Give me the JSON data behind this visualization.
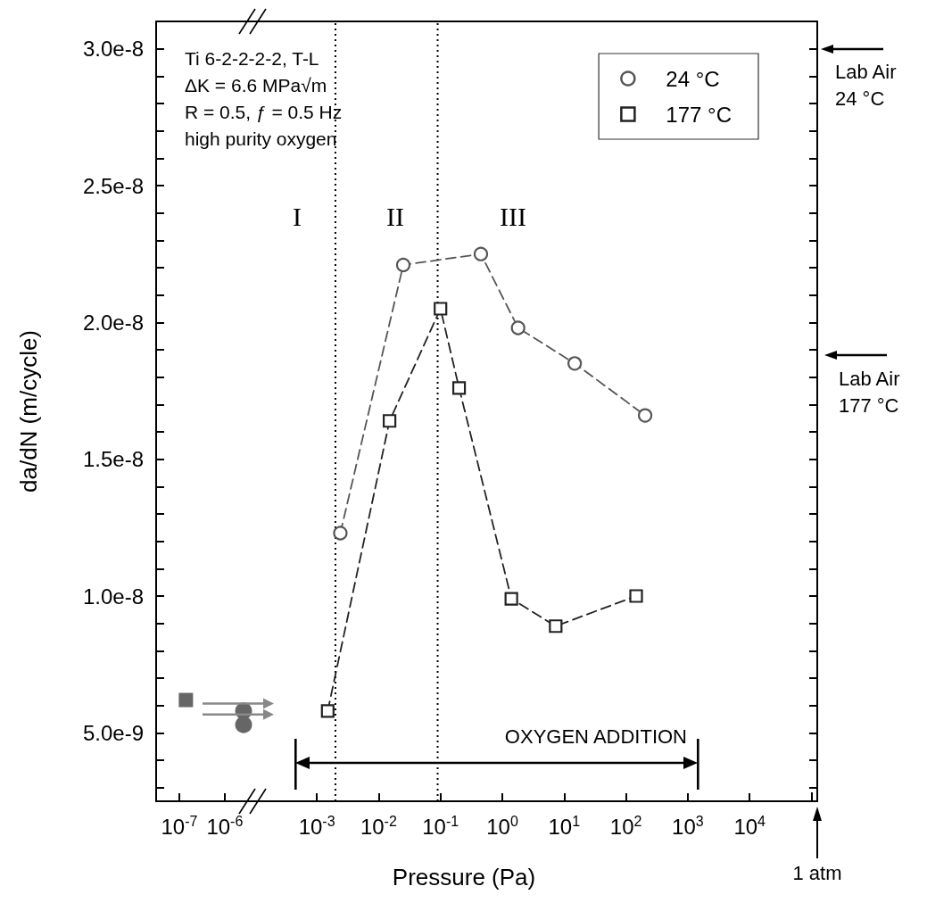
{
  "chart_data": [
    {
      "type": "scatter",
      "log": "x",
      "ylabel": "da/dN (m/cycle)",
      "xlim": [
        3.1e-08,
        5.6e-06
      ],
      "xticks": [
        {
          "value": 1e-07,
          "label": "10$^{-7}$"
        },
        {
          "value": 1e-06,
          "label": "10$^{-6}$"
        }
      ],
      "ylim": [
        2.5e-09,
        3.1e-08
      ],
      "yticks": [
        {
          "value": 3e-09,
          "label": null
        },
        {
          "value": 4e-09,
          "label": null
        },
        {
          "value": 5e-09,
          "label": "5.0e-9"
        },
        {
          "value": 6e-09,
          "label": null
        },
        {
          "value": 7e-09,
          "label": null
        },
        {
          "value": 8e-09,
          "label": null
        },
        {
          "value": 9e-09,
          "label": null
        },
        {
          "value": 1e-08,
          "label": "1.0e-8"
        },
        {
          "value": 1.1e-08,
          "label": null
        },
        {
          "value": 1.2e-08,
          "label": null
        },
        {
          "value": 1.3e-08,
          "label": null
        },
        {
          "value": 1.4e-08,
          "label": null
        },
        {
          "value": 1.5e-08,
          "label": "1.5e-8"
        },
        {
          "value": 1.6e-08,
          "label": null
        },
        {
          "value": 1.7e-08,
          "label": null
        },
        {
          "value": 1.8e-08,
          "label": null
        },
        {
          "value": 1.9e-08,
          "label": null
        },
        {
          "value": 2e-08,
          "label": "2.0e-8"
        },
        {
          "value": 2.1e-08,
          "label": null
        },
        {
          "value": 2.2e-08,
          "label": null
        },
        {
          "value": 2.3e-08,
          "label": null
        },
        {
          "value": 2.4e-08,
          "label": null
        },
        {
          "value": 2.5e-08,
          "label": "2.5e-8"
        },
        {
          "value": 2.6e-08,
          "label": null
        },
        {
          "value": 2.7e-08,
          "label": null
        },
        {
          "value": 2.8e-08,
          "label": null
        },
        {
          "value": 2.9e-08,
          "label": null
        },
        {
          "value": 3e-08,
          "label": "3.0e-8"
        }
      ],
      "series": [
        {
          "color": "#666666",
          "marker": "square",
          "x": [
            1.4e-07
          ],
          "values": [
            6.2e-09
          ]
        },
        {
          "color": "#666666",
          "marker": "circle",
          "x": [
            2.6e-06,
            2.6e-06
          ],
          "values": [
            5.8e-09,
            5.3e-09
          ]
        }
      ]
    },
    {
      "type": "line",
      "log": "x",
      "xlabel": "Pressure (Pa)",
      "tick_labels": "x",
      "legend": "top right",
      "xlim": [
        0.000115,
        124000.0
      ],
      "xticks": [
        {
          "value": 0.001,
          "label": "10$^{-3}$"
        },
        {
          "value": 0.01,
          "label": "10$^{-2}$"
        },
        {
          "value": 0.1,
          "label": "10$^{-1}$"
        },
        {
          "value": 1,
          "label": "10$^{0}$"
        },
        {
          "value": 10,
          "label": "10$^{1}$"
        },
        {
          "value": 100,
          "label": "10$^{2}$"
        },
        {
          "value": 1000,
          "label": "10$^{3}$"
        },
        {
          "value": 10000,
          "label": "10$^{4}$"
        }
      ],
      "ylim": [
        2.5e-09,
        3.1e-08
      ],
      "yticks": [
        {
          "value": 3e-09,
          "label": null
        },
        {
          "value": 4e-09,
          "label": null
        },
        {
          "value": 5e-09,
          "label": null
        },
        {
          "value": 6e-09,
          "label": null
        },
        {
          "value": 7e-09,
          "label": null
        },
        {
          "value": 8e-09,
          "label": null
        },
        {
          "value": 9e-09,
          "label": null
        },
        {
          "value": 1e-08,
          "label": null
        },
        {
          "value": 1.1e-08,
          "label": null
        },
        {
          "value": 1.2e-08,
          "label": null
        },
        {
          "value": 1.3e-08,
          "label": null
        },
        {
          "value": 1.4e-08,
          "label": null
        },
        {
          "value": 1.5e-08,
          "label": null
        },
        {
          "value": 1.6e-08,
          "label": null
        },
        {
          "value": 1.7e-08,
          "label": null
        },
        {
          "value": 1.8e-08,
          "label": null
        },
        {
          "value": 1.9e-08,
          "label": null
        },
        {
          "value": 2e-08,
          "label": null
        },
        {
          "value": 2.1e-08,
          "label": null
        },
        {
          "value": 2.2e-08,
          "label": null
        },
        {
          "value": 2.3e-08,
          "label": null
        },
        {
          "value": 2.4e-08,
          "label": null
        },
        {
          "value": 2.5e-08,
          "label": null
        },
        {
          "value": 2.6e-08,
          "label": null
        },
        {
          "value": 2.7e-08,
          "label": null
        },
        {
          "value": 2.8e-08,
          "label": null
        },
        {
          "value": 2.9e-08,
          "label": null
        },
        {
          "value": 3e-08,
          "label": null
        }
      ],
      "series": [
        {
          "name": "24 °C",
          "color": "#555555",
          "marker": "circle",
          "line_style": "dashed",
          "x": [
            0.0024,
            0.025,
            0.45,
            1.8,
            14.8,
            204
          ],
          "values": [
            1.23e-08,
            2.21e-08,
            2.25e-08,
            1.98e-08,
            1.85e-08,
            1.66e-08
          ]
        },
        {
          "name": "177 °C",
          "color": "#222222",
          "marker": "square",
          "line_style": "dashed",
          "x": [
            0.0015,
            0.015,
            0.1,
            0.2,
            1.4,
            7.3,
            146
          ],
          "values": [
            5.8e-09,
            1.64e-08,
            2.05e-08,
            1.76e-08,
            9.9e-09,
            8.9e-09,
            1e-08
          ]
        }
      ],
      "ref_lines": [
        {
          "axis": "x",
          "value": 0.002,
          "line_style": "dotted",
          "color": "#000000"
        },
        {
          "axis": "x",
          "value": 0.09,
          "line_style": "dotted",
          "color": "#000000"
        }
      ],
      "annotations": [
        "Ti 6-2-2-2-2, T-L\nΔK = 6.6 MPa√m\nR = 0.5, ƒ = 0.5 Hz\nhigh purity oxygen",
        "I",
        "II",
        "III",
        "OXYGEN ADDITION",
        "Lab Air\n24 °C",
        "Lab Air\n177 °C",
        "1 atm"
      ]
    }
  ]
}
